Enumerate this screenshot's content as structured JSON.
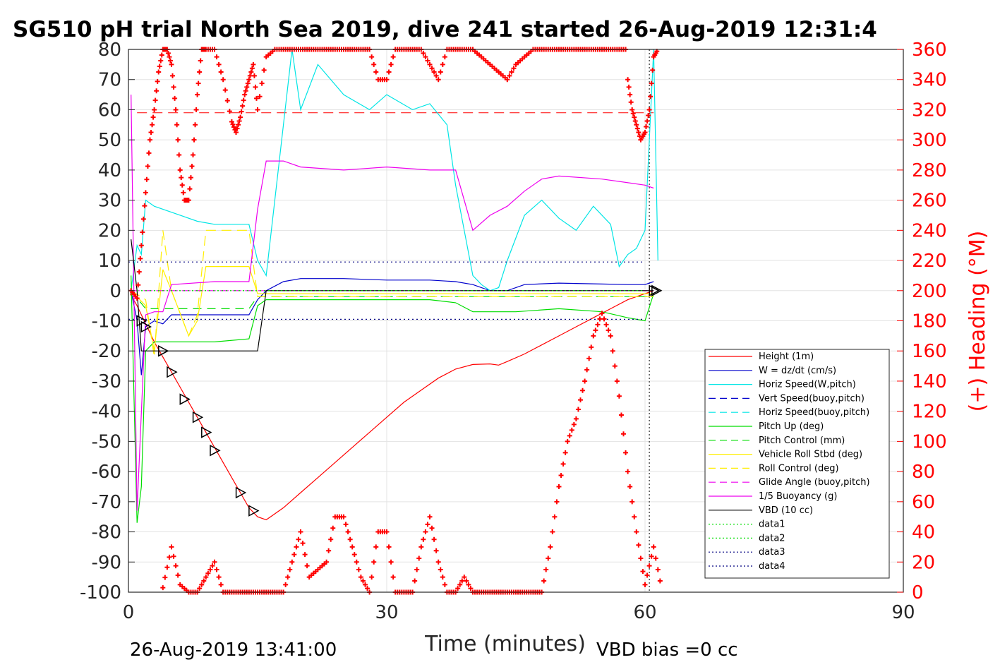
{
  "chart_data": {
    "type": "line",
    "title": "SG510 pH trial North Sea 2019, dive 241 started 26-Aug-2019 12:31:4",
    "xlabel": "Time (minutes)",
    "ylabel_right": "(+) Heading (°M)",
    "footer_left": "26-Aug-2019 13:41:00",
    "footer_right": "VBD bias =0 cc",
    "xlim": [
      0,
      90
    ],
    "ylim_left": [
      -100,
      80
    ],
    "ylim_right": [
      0,
      360
    ],
    "x_ticks": [
      "0",
      "30",
      "60",
      "90"
    ],
    "y_ticks_left": [
      "80",
      "70",
      "60",
      "50",
      "40",
      "30",
      "20",
      "10",
      "0",
      "-10",
      "-20",
      "-30",
      "-40",
      "-50",
      "-60",
      "-70",
      "-80",
      "-90",
      "-100"
    ],
    "y_ticks_right": [
      "360",
      "340",
      "320",
      "300",
      "280",
      "260",
      "240",
      "220",
      "200",
      "180",
      "160",
      "140",
      "120",
      "100",
      "80",
      "60",
      "40",
      "20",
      "0"
    ],
    "grid": true,
    "legend_position": "lower-right",
    "legend": [
      {
        "label": "Height (1m)",
        "color": "#ff0000",
        "style": "solid"
      },
      {
        "label": "W = dz/dt (cm/s)",
        "color": "#0000cc",
        "style": "solid"
      },
      {
        "label": "Horiz Speed(W,pitch)",
        "color": "#00e5e5",
        "style": "solid"
      },
      {
        "label": "Vert Speed(buoy,pitch)",
        "color": "#0000cc",
        "style": "dashed"
      },
      {
        "label": "Horiz Speed(buoy,pitch)",
        "color": "#00e5e5",
        "style": "dashed"
      },
      {
        "label": "Pitch Up (deg)",
        "color": "#00dd00",
        "style": "solid"
      },
      {
        "label": "Pitch Control (mm)",
        "color": "#00dd00",
        "style": "dashed"
      },
      {
        "label": "Vehicle Roll Stbd (deg)",
        "color": "#ffee00",
        "style": "solid"
      },
      {
        "label": "Roll Control (deg)",
        "color": "#ffee00",
        "style": "dashed"
      },
      {
        "label": "Glide Angle (buoy,pitch)",
        "color": "#ee00ee",
        "style": "dashed"
      },
      {
        "label": "1/5 Buoyancy (g)",
        "color": "#ee00ee",
        "style": "solid"
      },
      {
        "label": "VBD (10 cc)",
        "color": "#000000",
        "style": "solid"
      },
      {
        "label": "data1",
        "color": "#00dd00",
        "style": "dotted"
      },
      {
        "label": "data2",
        "color": "#00dd00",
        "style": "dotted"
      },
      {
        "label": "data3",
        "color": "#000080",
        "style": "dotted"
      },
      {
        "label": "data4",
        "color": "#000080",
        "style": "dotted"
      }
    ],
    "series": [
      {
        "key": "height",
        "x": [
          0.2,
          1,
          2,
          3,
          4,
          5,
          6,
          7,
          8,
          9,
          10,
          11,
          12,
          13,
          14,
          15,
          16,
          18,
          20,
          22,
          24,
          26,
          28,
          30,
          32,
          34,
          36,
          38,
          40,
          42,
          43,
          44,
          46,
          48,
          50,
          52,
          54,
          56,
          58,
          60,
          61
        ],
        "y": [
          -1,
          -5,
          -11,
          -17,
          -22,
          -27,
          -32,
          -37,
          -42,
          -47,
          -52,
          -57,
          -62,
          -67,
          -72,
          -75,
          -76,
          -72,
          -67,
          -62,
          -57,
          -52,
          -47,
          -42,
          -37,
          -33,
          -29,
          -26,
          -24.5,
          -24.3,
          -24.7,
          -23.5,
          -21,
          -18,
          -15,
          -12,
          -9,
          -6,
          -3,
          -1,
          0
        ]
      },
      {
        "key": "w",
        "x": [
          0.3,
          1,
          1.5,
          2,
          3,
          4,
          5,
          8,
          10,
          12,
          14,
          15,
          16,
          18,
          20,
          25,
          30,
          35,
          38,
          40,
          42,
          44,
          46,
          50,
          55,
          58,
          60,
          61
        ],
        "y": [
          0,
          -10,
          -28,
          -12,
          -10,
          -11,
          -8,
          -8,
          -8,
          -8,
          -8,
          -3,
          0,
          3,
          4,
          4,
          3.5,
          3.5,
          3,
          2,
          0,
          0,
          2,
          2.5,
          2.2,
          2,
          2,
          3
        ]
      },
      {
        "key": "hspeed",
        "x": [
          0.3,
          1,
          1.5,
          2,
          3,
          5,
          8,
          10,
          14,
          15,
          16,
          17,
          18,
          19,
          20,
          22,
          25,
          28,
          30,
          33,
          35,
          37,
          38,
          39,
          40,
          41,
          42,
          43,
          44,
          46,
          48,
          50,
          52,
          54,
          56,
          57,
          58,
          59,
          60,
          61,
          61.5
        ],
        "y": [
          0,
          15,
          12,
          30,
          28,
          26,
          23,
          22,
          22,
          10,
          5,
          30,
          55,
          80,
          60,
          75,
          65,
          60,
          65,
          60,
          62,
          55,
          35,
          20,
          5,
          2,
          0,
          1,
          10,
          25,
          30,
          24,
          20,
          28,
          22,
          8,
          12,
          14,
          20,
          80,
          10
        ]
      },
      {
        "key": "pitch",
        "x": [
          0.3,
          1,
          1.5,
          2,
          3,
          5,
          8,
          10,
          14,
          15,
          16,
          20,
          25,
          30,
          35,
          38,
          40,
          45,
          50,
          55,
          58,
          60,
          61
        ],
        "y": [
          5,
          -77,
          -65,
          -20,
          -17,
          -17,
          -17,
          -17,
          -16,
          -5,
          -3,
          -3,
          -3,
          -3,
          -3,
          -4,
          -7,
          -7,
          -6,
          -7,
          -9,
          -10,
          -1
        ]
      },
      {
        "key": "pitch_control",
        "x": [
          0.3,
          2,
          3,
          14,
          15,
          20,
          40,
          60,
          61
        ],
        "y": [
          0,
          -6,
          -6,
          -6,
          -2,
          -2,
          -2,
          -2,
          -2
        ]
      },
      {
        "key": "roll",
        "x": [
          0.3,
          2,
          3,
          4,
          5,
          7,
          8,
          9,
          10,
          14,
          15,
          20,
          40,
          60,
          61
        ],
        "y": [
          0,
          -5,
          -20,
          7,
          0,
          -15,
          -10,
          8,
          8,
          8,
          -1,
          -1,
          -1,
          -1,
          -1
        ]
      },
      {
        "key": "roll_control",
        "x": [
          0.3,
          2,
          3,
          4,
          5,
          7,
          8,
          9,
          10,
          14,
          15,
          20,
          40,
          60,
          61
        ],
        "y": [
          0,
          -3,
          -22,
          20,
          0,
          -15,
          -8,
          20,
          20,
          20,
          -2,
          -2,
          -2,
          -2,
          -2
        ]
      },
      {
        "key": "glide",
        "x": [
          0.3,
          2,
          60,
          61
        ],
        "y": [
          0,
          0,
          0,
          0
        ]
      },
      {
        "key": "buoy",
        "x": [
          0.3,
          1,
          2,
          3,
          4,
          5,
          10,
          14,
          15,
          16,
          18,
          20,
          25,
          30,
          35,
          38,
          39,
          40,
          42,
          44,
          46,
          48,
          50,
          55,
          60,
          61
        ],
        "y": [
          65,
          -73,
          -8,
          -7,
          -7,
          2,
          3,
          3,
          27,
          43,
          43,
          41,
          40,
          41,
          40,
          40,
          30,
          20,
          25,
          28,
          33,
          37,
          38,
          37,
          35,
          34
        ]
      },
      {
        "key": "vbd",
        "x": [
          0.3,
          1,
          1.5,
          2,
          3,
          4,
          14,
          15,
          16,
          60,
          61
        ],
        "y": [
          17,
          0,
          -20,
          -20,
          -20,
          -20,
          -20,
          -20,
          0,
          0,
          0
        ]
      },
      {
        "key": "data1",
        "x": [
          0,
          60
        ],
        "y": [
          0,
          0
        ]
      },
      {
        "key": "data2",
        "x": [
          0,
          60
        ],
        "y": [
          0,
          0
        ]
      },
      {
        "key": "data3",
        "x": [
          0,
          60
        ],
        "y": [
          9.5,
          9.5
        ]
      },
      {
        "key": "data4",
        "x": [
          0,
          60
        ],
        "y": [
          -9.5,
          -9.5
        ]
      },
      {
        "key": "heading",
        "axis": "right",
        "x": [
          0.3,
          1,
          1.5,
          2,
          2.5,
          3,
          3.5,
          4,
          4.5,
          5,
          5.5,
          6,
          6.5,
          7,
          7.5,
          8,
          8.5,
          9,
          10,
          11,
          12,
          12.5,
          13,
          13.5,
          14,
          14.5,
          15,
          16,
          17,
          18,
          19,
          20,
          21,
          22,
          23,
          24,
          25,
          26,
          27,
          28,
          29,
          30,
          31,
          32,
          33,
          34,
          35,
          36,
          37,
          38,
          39,
          40,
          41,
          42,
          43,
          44,
          45,
          46,
          47,
          48,
          49,
          50,
          51,
          52,
          53,
          54,
          55,
          56,
          57,
          58
        ],
        "y": [
          200,
          195,
          230,
          265,
          300,
          320,
          345,
          360,
          360,
          350,
          320,
          280,
          260,
          260,
          290,
          330,
          360,
          360,
          360,
          340,
          312,
          305,
          315,
          330,
          340,
          350,
          320,
          355,
          360,
          360,
          360,
          360,
          360,
          360,
          360,
          360,
          360,
          360,
          360,
          360,
          340,
          340,
          360,
          360,
          360,
          360,
          350,
          340,
          360,
          360,
          360,
          360,
          355,
          350,
          345,
          340,
          350,
          355,
          360,
          360,
          360,
          360,
          360,
          360,
          360,
          360,
          360,
          360,
          360,
          360
        ]
      },
      {
        "key": "heading_low",
        "axis": "right",
        "x": [
          4,
          5,
          6,
          7,
          8,
          9,
          10,
          11,
          12,
          13,
          14,
          15,
          16,
          17,
          18,
          19,
          20,
          21,
          22,
          23,
          24,
          25,
          26,
          27,
          28,
          29,
          30,
          31,
          32,
          33,
          34,
          35,
          36,
          37,
          38,
          39,
          40,
          41,
          42,
          43,
          44,
          45,
          46,
          47,
          48,
          49,
          50,
          51,
          52,
          53,
          54,
          55,
          56,
          57,
          58,
          59,
          60,
          61,
          62
        ],
        "y": [
          3,
          30,
          5,
          0,
          0,
          10,
          20,
          0,
          0,
          0,
          0,
          0,
          0,
          0,
          0,
          20,
          40,
          10,
          15,
          20,
          50,
          50,
          30,
          10,
          0,
          40,
          40,
          0,
          0,
          0,
          30,
          50,
          20,
          0,
          0,
          10,
          0,
          0,
          0,
          0,
          0,
          0,
          0,
          0,
          0,
          30,
          70,
          100,
          115,
          140,
          170,
          185,
          170,
          130,
          80,
          40,
          5,
          30,
          0
        ]
      },
      {
        "key": "heading_end",
        "axis": "right",
        "x": [
          58,
          58.5,
          59,
          59.5,
          60,
          60.5,
          61,
          61.5
        ],
        "y": [
          340,
          320,
          310,
          300,
          305,
          320,
          355,
          360
        ]
      }
    ],
    "markers": [
      {
        "x": 1.5,
        "y": -10
      },
      {
        "x": 2,
        "y": -12
      },
      {
        "x": 4,
        "y": -20
      },
      {
        "x": 5,
        "y": -27
      },
      {
        "x": 6.5,
        "y": -36
      },
      {
        "x": 8,
        "y": -42
      },
      {
        "x": 9,
        "y": -47
      },
      {
        "x": 10,
        "y": -53
      },
      {
        "x": 13,
        "y": -67
      },
      {
        "x": 14.5,
        "y": -73
      },
      {
        "x": 61,
        "y": 0
      },
      {
        "x": 61.3,
        "y": 0
      }
    ],
    "reference_lines": [
      {
        "axis": "right",
        "y": 318,
        "color": "#ff0000",
        "style": "dashed",
        "x_from": 1,
        "x_to": 61
      },
      {
        "axis": "x",
        "x": 60.5,
        "color": "#000000",
        "style": "dotted"
      }
    ]
  }
}
